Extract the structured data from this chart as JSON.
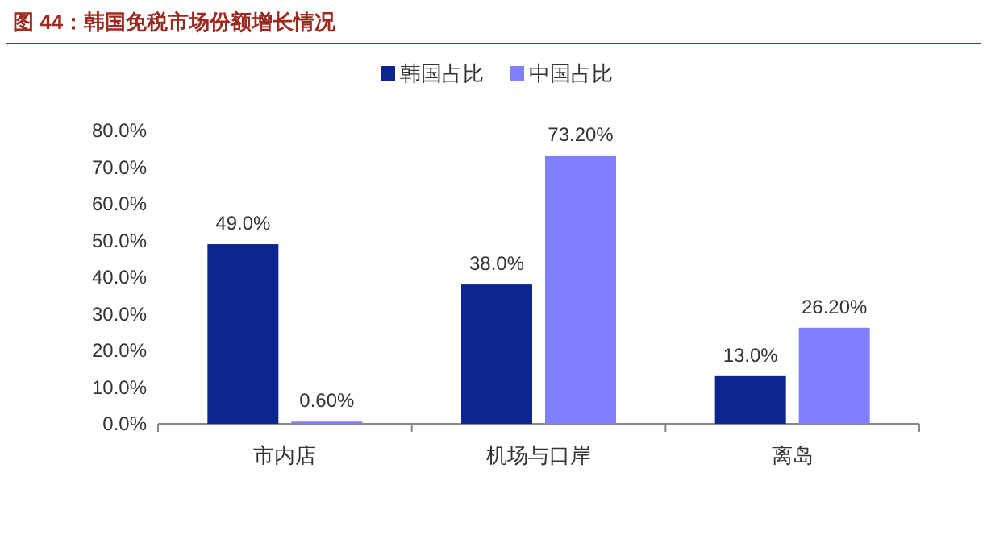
{
  "chart_data": {
    "type": "bar",
    "title": "图 44：韩国免税市场份额增长情况",
    "categories": [
      "市内店",
      "机场与口岸",
      "离岛"
    ],
    "series": [
      {
        "name": "韩国占比",
        "color": "#0c2590",
        "values": [
          49.0,
          38.0,
          13.0
        ],
        "value_labels": [
          "49.0%",
          "38.0%",
          "13.0%"
        ]
      },
      {
        "name": "中国占比",
        "color": "#7f7fff",
        "values": [
          0.6,
          73.2,
          26.2
        ],
        "value_labels": [
          "0.60%",
          "73.20%",
          "26.20%"
        ]
      }
    ],
    "ylim": [
      0,
      80
    ],
    "yticks": [
      {
        "value": 0,
        "label": "0.0%"
      },
      {
        "value": 10,
        "label": "10.0%"
      },
      {
        "value": 20,
        "label": "20.0%"
      },
      {
        "value": 30,
        "label": "30.0%"
      },
      {
        "value": 40,
        "label": "40.0%"
      },
      {
        "value": 50,
        "label": "50.0%"
      },
      {
        "value": 60,
        "label": "60.0%"
      },
      {
        "value": 70,
        "label": "70.0%"
      },
      {
        "value": 80,
        "label": "80.0%"
      }
    ],
    "legend": "top",
    "grid": false
  }
}
